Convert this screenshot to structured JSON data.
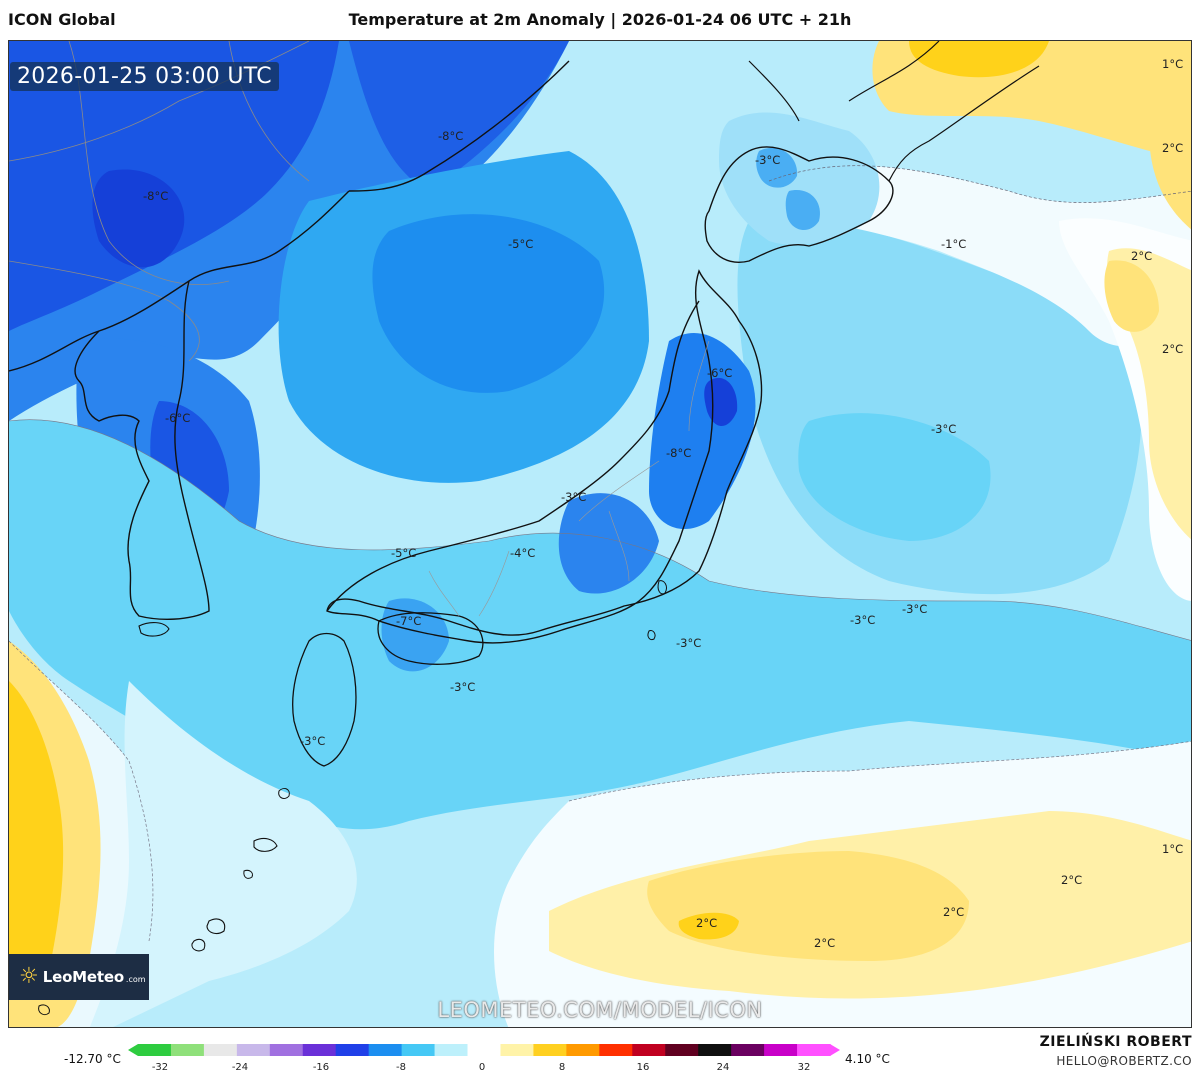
{
  "header": {
    "model": "ICON Global",
    "title": "Temperature at 2m Anomaly | 2026-01-24 06 UTC + 21h"
  },
  "map": {
    "timestamp": "2026-01-25 03:00 UTC",
    "contour_labels": [
      {
        "id": "manchuria",
        "text": "-8°C"
      },
      {
        "id": "siberia",
        "text": "-8°C"
      },
      {
        "id": "hokkaido",
        "text": "-3°C"
      },
      {
        "id": "sea-of-japan",
        "text": "-5°C"
      },
      {
        "id": "pacific-east-1",
        "text": "-1°C"
      },
      {
        "id": "ne-1",
        "text": "1°C"
      },
      {
        "id": "ne-2",
        "text": "2°C"
      },
      {
        "id": "ne-3",
        "text": "2°C"
      },
      {
        "id": "ne-4",
        "text": "2°C"
      },
      {
        "id": "tohoku",
        "text": "-6°C"
      },
      {
        "id": "korea",
        "text": "-6°C"
      },
      {
        "id": "pacific-east-2",
        "text": "-3°C"
      },
      {
        "id": "chubu",
        "text": "-8°C"
      },
      {
        "id": "hokuriku",
        "text": "-3°C"
      },
      {
        "id": "chugoku",
        "text": "-5°C"
      },
      {
        "id": "kinki",
        "text": "-4°C"
      },
      {
        "id": "shikoku",
        "text": "-7°C"
      },
      {
        "id": "pacific-south-1",
        "text": "-3°C"
      },
      {
        "id": "pacific-south-2",
        "text": "-3°C"
      },
      {
        "id": "pacific-south-3",
        "text": "-3°C"
      },
      {
        "id": "kyushu-sea",
        "text": "-3°C"
      },
      {
        "id": "kyushu",
        "text": "-3°C"
      },
      {
        "id": "se-1",
        "text": "1°C"
      },
      {
        "id": "se-2",
        "text": "2°C"
      },
      {
        "id": "se-3",
        "text": "2°C"
      },
      {
        "id": "se-4",
        "text": "2°C"
      },
      {
        "id": "se-5",
        "text": "2°C"
      }
    ]
  },
  "logo": {
    "name": "LeoMeteo",
    "suffix": ".com"
  },
  "watermark": "LEOMETEO.COM/MODEL/ICON",
  "colorbar": {
    "min_label": "-12.70 °C",
    "max_label": "4.10 °C",
    "ticks": [
      "-32",
      "-24",
      "-16",
      "-8",
      "0",
      "8",
      "16",
      "24",
      "32"
    ],
    "colors": [
      "#2ecc40",
      "#8fe07a",
      "#e8e8e8",
      "#c8b8ea",
      "#a070e0",
      "#6a30d8",
      "#2040e8",
      "#1c8ef0",
      "#45c8f5",
      "#bdf0fb",
      "#ffffff",
      "#fff3a8",
      "#ffd020",
      "#ff9a00",
      "#ff3000",
      "#c00020",
      "#600020",
      "#101010",
      "#6a0060",
      "#c800c8",
      "#ff50ff"
    ]
  },
  "credits": {
    "author": "ZIELIŃSKI ROBERT",
    "email": "HELLO@ROBERTZ.CO"
  }
}
